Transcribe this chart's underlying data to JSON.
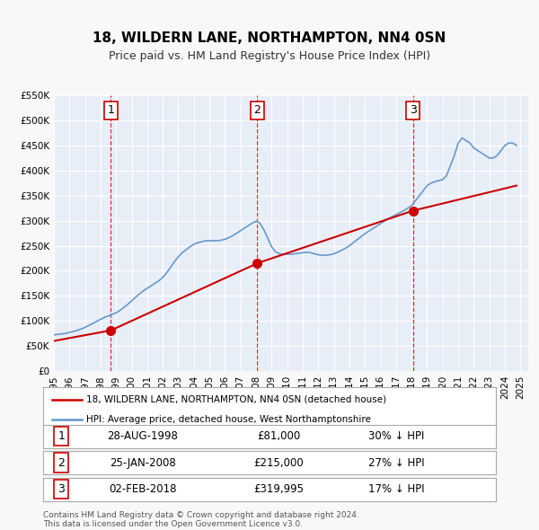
{
  "title": "18, WILDERN LANE, NORTHAMPTON, NN4 0SN",
  "subtitle": "Price paid vs. HM Land Registry's House Price Index (HPI)",
  "legend_line1": "18, WILDERN LANE, NORTHAMPTON, NN4 0SN (detached house)",
  "legend_line2": "HPI: Average price, detached house, West Northamptonshire",
  "footer1": "Contains HM Land Registry data © Crown copyright and database right 2024.",
  "footer2": "This data is licensed under the Open Government Licence v3.0.",
  "sale_color": "#cc0000",
  "hpi_color": "#6699cc",
  "background_color": "#f0f4ff",
  "plot_bg_color": "#e8eef8",
  "grid_color": "#ffffff",
  "ylim": [
    0,
    550000
  ],
  "yticks": [
    0,
    50000,
    100000,
    150000,
    200000,
    250000,
    300000,
    350000,
    400000,
    450000,
    500000,
    550000
  ],
  "ytick_labels": [
    "£0",
    "£50K",
    "£100K",
    "£150K",
    "£200K",
    "£250K",
    "£300K",
    "£350K",
    "£400K",
    "£450K",
    "£500K",
    "£550K"
  ],
  "xlim_start": 1995.0,
  "xlim_end": 2025.5,
  "xtick_years": [
    1995,
    1996,
    1997,
    1998,
    1999,
    2000,
    2001,
    2002,
    2003,
    2004,
    2005,
    2006,
    2007,
    2008,
    2009,
    2010,
    2011,
    2012,
    2013,
    2014,
    2015,
    2016,
    2017,
    2018,
    2019,
    2020,
    2021,
    2022,
    2023,
    2024,
    2025
  ],
  "sales": [
    {
      "date": 1998.66,
      "price": 81000,
      "label": "1"
    },
    {
      "date": 2008.07,
      "price": 215000,
      "label": "2"
    },
    {
      "date": 2018.09,
      "price": 319995,
      "label": "3"
    }
  ],
  "sale_vlines": [
    1998.66,
    2008.07,
    2018.09
  ],
  "sale_labels_info": [
    {
      "label": "1",
      "date": "28-AUG-1998",
      "price": "£81,000",
      "hpi_diff": "30% ↓ HPI"
    },
    {
      "label": "2",
      "date": "25-JAN-2008",
      "price": "£215,000",
      "hpi_diff": "27% ↓ HPI"
    },
    {
      "label": "3",
      "date": "02-FEB-2018",
      "price": "£319,995",
      "hpi_diff": "17% ↓ HPI"
    }
  ],
  "hpi_x": [
    1995.0,
    1995.25,
    1995.5,
    1995.75,
    1996.0,
    1996.25,
    1996.5,
    1996.75,
    1997.0,
    1997.25,
    1997.5,
    1997.75,
    1998.0,
    1998.25,
    1998.5,
    1998.75,
    1999.0,
    1999.25,
    1999.5,
    1999.75,
    2000.0,
    2000.25,
    2000.5,
    2000.75,
    2001.0,
    2001.25,
    2001.5,
    2001.75,
    2002.0,
    2002.25,
    2002.5,
    2002.75,
    2003.0,
    2003.25,
    2003.5,
    2003.75,
    2004.0,
    2004.25,
    2004.5,
    2004.75,
    2005.0,
    2005.25,
    2005.5,
    2005.75,
    2006.0,
    2006.25,
    2006.5,
    2006.75,
    2007.0,
    2007.25,
    2007.5,
    2007.75,
    2008.0,
    2008.25,
    2008.5,
    2008.75,
    2009.0,
    2009.25,
    2009.5,
    2009.75,
    2010.0,
    2010.25,
    2010.5,
    2010.75,
    2011.0,
    2011.25,
    2011.5,
    2011.75,
    2012.0,
    2012.25,
    2012.5,
    2012.75,
    2013.0,
    2013.25,
    2013.5,
    2013.75,
    2014.0,
    2014.25,
    2014.5,
    2014.75,
    2015.0,
    2015.25,
    2015.5,
    2015.75,
    2016.0,
    2016.25,
    2016.5,
    2016.75,
    2017.0,
    2017.25,
    2017.5,
    2017.75,
    2018.0,
    2018.25,
    2018.5,
    2018.75,
    2019.0,
    2019.25,
    2019.5,
    2019.75,
    2020.0,
    2020.25,
    2020.5,
    2020.75,
    2021.0,
    2021.25,
    2021.5,
    2021.75,
    2022.0,
    2022.25,
    2022.5,
    2022.75,
    2023.0,
    2023.25,
    2023.5,
    2023.75,
    2024.0,
    2024.25,
    2024.5,
    2024.75
  ],
  "hpi_y": [
    72000,
    73000,
    74000,
    75000,
    77000,
    79000,
    81000,
    84000,
    87000,
    91000,
    95000,
    99000,
    103000,
    107000,
    110000,
    113000,
    116000,
    121000,
    127000,
    133000,
    140000,
    147000,
    154000,
    160000,
    165000,
    170000,
    175000,
    180000,
    187000,
    196000,
    207000,
    218000,
    228000,
    236000,
    242000,
    248000,
    253000,
    256000,
    258000,
    260000,
    260000,
    260000,
    260000,
    261000,
    263000,
    266000,
    270000,
    275000,
    280000,
    285000,
    290000,
    295000,
    299000,
    295000,
    282000,
    265000,
    248000,
    238000,
    234000,
    233000,
    233000,
    233000,
    234000,
    235000,
    236000,
    237000,
    236000,
    234000,
    232000,
    231000,
    231000,
    232000,
    234000,
    237000,
    241000,
    245000,
    250000,
    256000,
    262000,
    268000,
    274000,
    279000,
    284000,
    289000,
    294000,
    299000,
    304000,
    308000,
    312000,
    316000,
    320000,
    325000,
    330000,
    340000,
    350000,
    360000,
    370000,
    375000,
    378000,
    380000,
    382000,
    390000,
    410000,
    430000,
    455000,
    465000,
    460000,
    455000,
    445000,
    440000,
    435000,
    430000,
    425000,
    425000,
    430000,
    440000,
    450000,
    455000,
    455000,
    450000
  ],
  "sale_line_x": [
    1995.0,
    1995.5,
    1996.0,
    1996.5,
    1997.0,
    1997.5,
    1998.0,
    1998.66,
    1998.66,
    2008.07,
    2008.07,
    2018.09,
    2018.09,
    2024.75
  ],
  "sale_line_y": [
    60000,
    63000,
    67000,
    71000,
    75000,
    78000,
    80000,
    81000,
    81000,
    215000,
    215000,
    319995,
    319995,
    370000
  ]
}
